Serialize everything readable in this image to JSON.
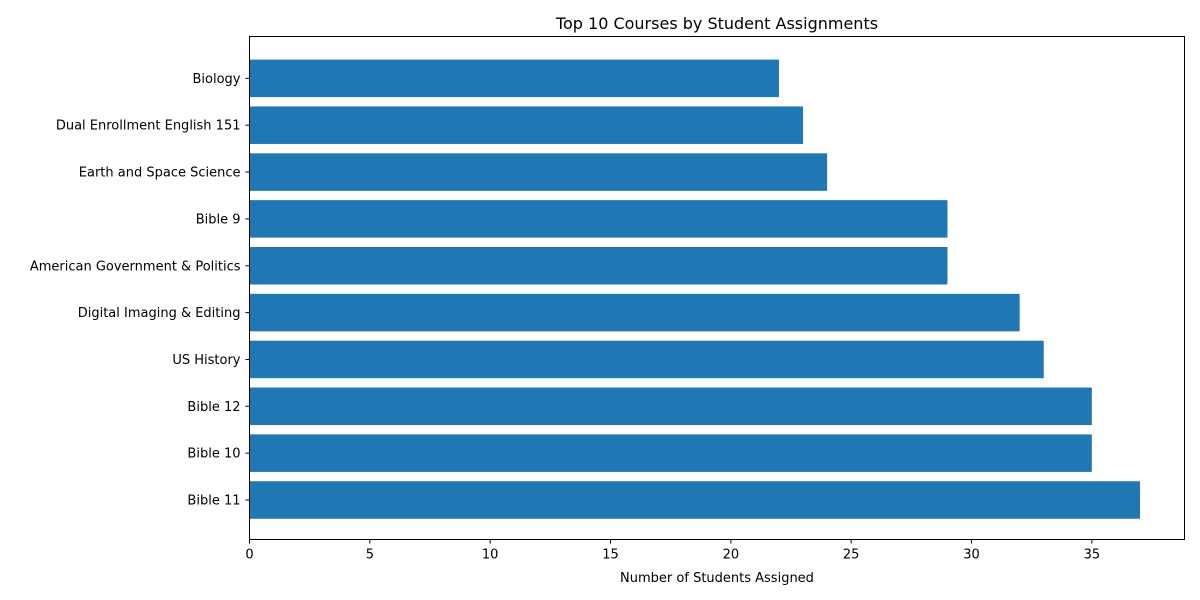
{
  "chart_data": {
    "type": "bar",
    "orientation": "horizontal",
    "title": "Top 10 Courses by Student Assignments",
    "xlabel": "Number of Students Assigned",
    "ylabel": "",
    "categories": [
      "Bible 11",
      "Bible 10",
      "Bible 12",
      "US History",
      "Digital Imaging & Editing",
      "American Government & Politics",
      "Bible 9",
      "Earth and Space Science",
      "Dual Enrollment English 151",
      "Biology"
    ],
    "values": [
      37,
      35,
      35,
      33,
      32,
      29,
      29,
      24,
      23,
      22
    ],
    "xlim": [
      0,
      38.85
    ],
    "xticks": [
      0,
      5,
      10,
      15,
      20,
      25,
      30,
      35
    ],
    "bar_color": "#1f77b4",
    "grid": false,
    "legend": "none"
  }
}
